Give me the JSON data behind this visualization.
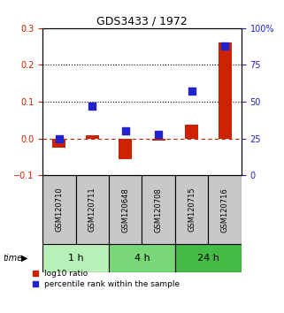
{
  "title": "GDS3433 / 1972",
  "samples": [
    "GSM120710",
    "GSM120711",
    "GSM120648",
    "GSM120708",
    "GSM120715",
    "GSM120716"
  ],
  "log10_ratio": [
    -0.025,
    0.008,
    -0.055,
    -0.005,
    0.038,
    0.26
  ],
  "percentile_rank_pct": [
    25,
    47,
    30,
    28,
    57,
    88
  ],
  "time_groups": [
    {
      "label": "1 h",
      "start": 0,
      "end": 2,
      "color": "#b8f0b8"
    },
    {
      "label": "4 h",
      "start": 2,
      "end": 4,
      "color": "#78d878"
    },
    {
      "label": "24 h",
      "start": 4,
      "end": 6,
      "color": "#44bb44"
    }
  ],
  "ylim_left": [
    -0.1,
    0.3
  ],
  "ylim_right": [
    0,
    100
  ],
  "left_ticks": [
    -0.1,
    0.0,
    0.1,
    0.2,
    0.3
  ],
  "right_ticks": [
    0,
    25,
    50,
    75,
    100
  ],
  "hlines": [
    0.1,
    0.2
  ],
  "bar_color_red": "#cc2200",
  "dot_color_blue": "#2222cc",
  "zero_line_color": "#cc2200",
  "background_color": "#ffffff",
  "tick_label_color_left": "#cc2200",
  "tick_label_color_right": "#2222cc",
  "bar_width": 0.4,
  "dot_size": 30
}
